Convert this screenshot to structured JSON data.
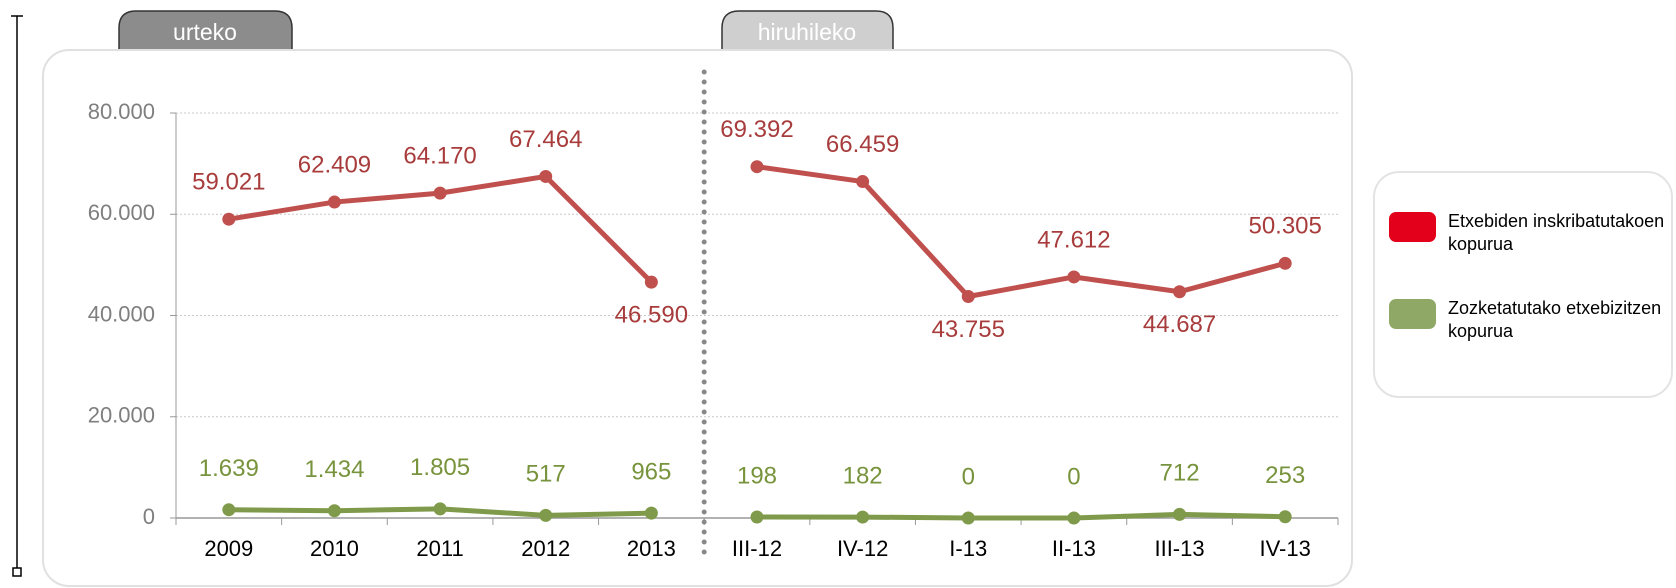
{
  "chart_data": {
    "type": "line",
    "section_labels": [
      "urteko",
      "hiruhileko"
    ],
    "categories": [
      "2009",
      "2010",
      "2011",
      "2012",
      "2013",
      "III-12",
      "IV-12",
      "I-13",
      "II-13",
      "III-13",
      "IV-13"
    ],
    "series": [
      {
        "name": "Etxebiden inskribatutakoen kopurua",
        "color": "#c0504d",
        "legend_color": "#e2001a",
        "label_color": "#a83c3c",
        "values": [
          59021,
          62409,
          64170,
          67464,
          46590,
          69392,
          66459,
          43755,
          47612,
          44687,
          50305
        ],
        "value_labels": [
          "59.021",
          "62.409",
          "64.170",
          "67.464",
          "46.590",
          "69.392",
          "66.459",
          "43.755",
          "47.612",
          "44.687",
          "50.305"
        ]
      },
      {
        "name": "Zozketatutako etxebizitzen kopurua",
        "color": "#7f9a4a",
        "legend_color": "#8fa866",
        "label_color": "#77933c",
        "values": [
          1639,
          1434,
          1805,
          517,
          965,
          198,
          182,
          0,
          0,
          712,
          253
        ],
        "value_labels": [
          "1.639",
          "1.434",
          "1.805",
          "517",
          "965",
          "198",
          "182",
          "0",
          "0",
          "712",
          "253"
        ]
      }
    ],
    "ylim": [
      0,
      80000
    ],
    "yticks": [
      0,
      {
        "value": 20000,
        "label": "20.000"
      },
      {
        "value": 40000,
        "label": "40.000"
      },
      {
        "value": 60000,
        "label": "60.000"
      },
      {
        "value": 80000,
        "label": "80.000"
      }
    ],
    "grid": true
  }
}
